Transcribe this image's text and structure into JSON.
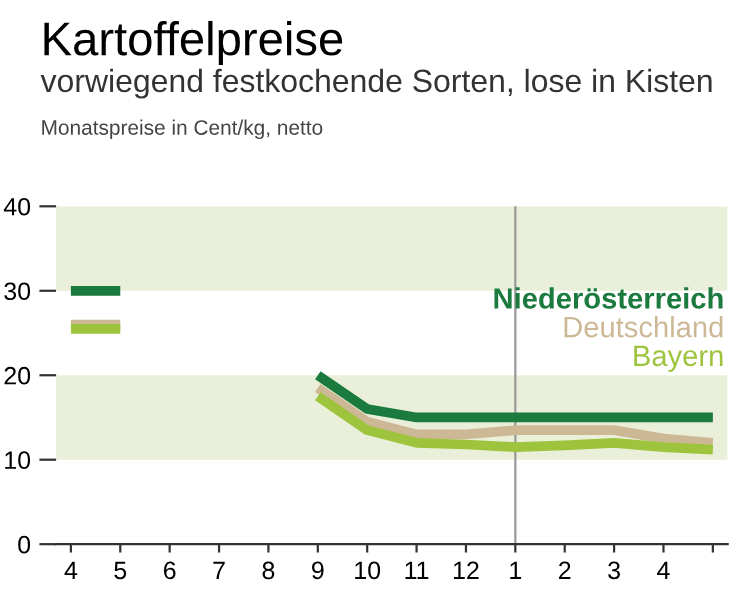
{
  "chart_data": {
    "type": "line",
    "title": "Kartoffelpreise",
    "subtitle": "vorwiegend festkochende Sorten, lose in Kisten",
    "annotations": [
      "Monatspreise in Cent/kg, netto"
    ],
    "categories": [
      "4",
      "5",
      "6",
      "7",
      "8",
      "9",
      "10",
      "11",
      "12",
      "1",
      "2",
      "3",
      "4",
      null
    ],
    "series": [
      {
        "name": "Niederösterreich",
        "color": "#1b7a3e",
        "values": [
          30,
          30,
          null,
          null,
          null,
          20,
          16,
          15,
          15,
          15,
          15,
          15,
          15,
          15
        ]
      },
      {
        "name": "Deutschland",
        "color": "#cdb895",
        "values": [
          26,
          26,
          null,
          null,
          null,
          18.5,
          14.5,
          13,
          13,
          13.5,
          13.5,
          13.5,
          12.5,
          12
        ]
      },
      {
        "name": "Bayern",
        "color": "#9dc43c",
        "values": [
          25.5,
          25.5,
          null,
          null,
          null,
          17.5,
          13.5,
          12,
          11.8,
          11.5,
          11.7,
          12,
          11.5,
          11.2
        ]
      }
    ],
    "ylim": [
      0,
      40
    ],
    "yticks": [
      0,
      10,
      20,
      30,
      40
    ],
    "grid": false,
    "legend": "right",
    "bands": [
      {
        "axis": "y",
        "from": 10,
        "to": 20,
        "color": "#e9efd9"
      },
      {
        "axis": "y",
        "from": 30,
        "to": 40,
        "color": "#e9efd9"
      }
    ],
    "ref_lines": [
      {
        "axis": "x",
        "value": "1",
        "color": "#999999"
      }
    ]
  }
}
